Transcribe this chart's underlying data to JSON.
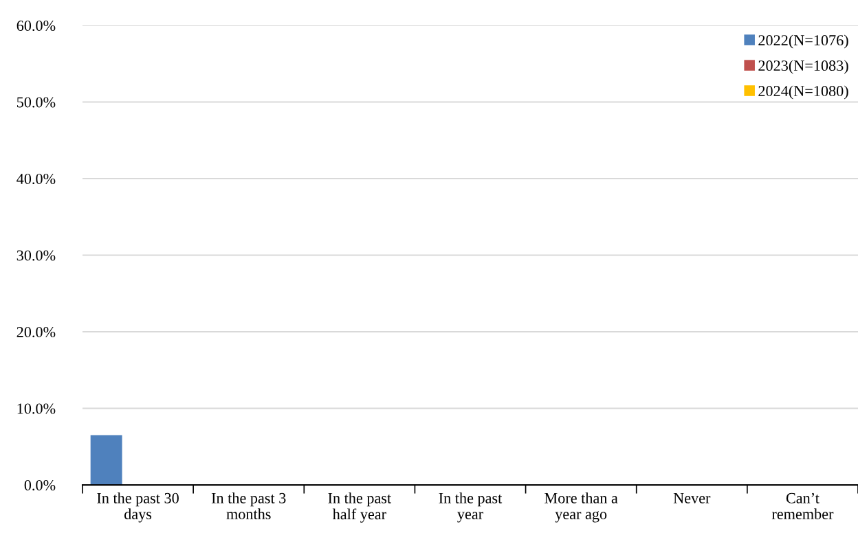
{
  "chart_data": {
    "type": "bar",
    "categories": [
      "In the past 30\ndays",
      "In the past 3\nmonths",
      "In the past\nhalf year",
      "In the past\nyear",
      "More than a\nyear ago",
      "Never",
      "Can’t\nremember"
    ],
    "series": [
      {
        "name": "2022(N=1076)",
        "color": "#4f81bd",
        "values": [
          6.5,
          0,
          0,
          0,
          0,
          0,
          0
        ]
      },
      {
        "name": "2023(N=1083)",
        "color": "#c0504d",
        "values": [
          0,
          0,
          0,
          0,
          0,
          0,
          0
        ]
      },
      {
        "name": "2024(N=1080)",
        "color": "#ffc000",
        "values": [
          0,
          0,
          0,
          0,
          0,
          0,
          0
        ]
      }
    ],
    "ylim": [
      0,
      60
    ],
    "yticks": [
      {
        "value": 0,
        "label": "0.0%"
      },
      {
        "value": 10,
        "label": "10.0%"
      },
      {
        "value": 20,
        "label": "20.0%"
      },
      {
        "value": 30,
        "label": "30.0%"
      },
      {
        "value": 40,
        "label": "40.0%"
      },
      {
        "value": 50,
        "label": "50.0%"
      },
      {
        "value": 60,
        "label": "60.0%"
      }
    ],
    "grid": "y",
    "legend": "top right"
  }
}
